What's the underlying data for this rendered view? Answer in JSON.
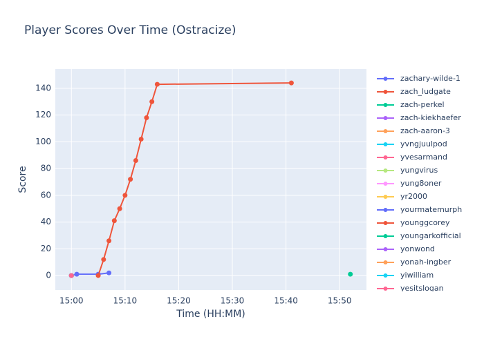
{
  "chart_data": {
    "type": "line",
    "title": "Player Scores Over Time (Ostracize)",
    "x_label": "Time (HH:MM)",
    "y_label": "Score",
    "xlim": [
      "14:57",
      "15:55"
    ],
    "xticks": [
      "15:00",
      "15:10",
      "15:20",
      "15:30",
      "15:40",
      "15:50"
    ],
    "ylim": [
      -10.8,
      154.4
    ],
    "yticks": [
      0,
      20,
      40,
      60,
      80,
      100,
      120,
      140
    ],
    "grid": true,
    "series": [
      {
        "name": "zachary-wilde-1",
        "color": "#636efa",
        "x": [
          "15:00",
          "15:01",
          "15:05",
          "15:07"
        ],
        "values": [
          0,
          1,
          1,
          2
        ]
      },
      {
        "name": "zach_ludgate",
        "color": "#EF553B",
        "x": [
          "15:05",
          "15:06",
          "15:07",
          "15:08",
          "15:09",
          "15:10",
          "15:11",
          "15:12",
          "15:13",
          "15:14",
          "15:15",
          "15:16",
          "15:41"
        ],
        "values": [
          0,
          12,
          26,
          41,
          50,
          60,
          72,
          86,
          102,
          118,
          130,
          143,
          144
        ]
      },
      {
        "name": "zach-perkel",
        "color": "#00cc96",
        "x": [
          "15:52"
        ],
        "values": [
          1
        ]
      },
      {
        "name": "zach-kiekhaefer",
        "color": "#ab63fa",
        "x": [
          "15:00"
        ],
        "values": [
          0
        ]
      },
      {
        "name": "zach-aaron-3",
        "color": "#FFA15A",
        "x": [
          "15:00"
        ],
        "values": [
          0
        ]
      },
      {
        "name": "yvngjuulpod",
        "color": "#19d3f3",
        "x": [
          "15:00"
        ],
        "values": [
          0
        ]
      },
      {
        "name": "yvesarmand",
        "color": "#FF6692",
        "x": [
          "15:00"
        ],
        "values": [
          0
        ]
      },
      {
        "name": "yungvirus",
        "color": "#B6E880",
        "x": [
          "15:00"
        ],
        "values": [
          0
        ]
      },
      {
        "name": "yung8oner",
        "color": "#FF97FF",
        "x": [
          "15:00"
        ],
        "values": [
          0
        ]
      },
      {
        "name": "yr2000",
        "color": "#FECB52",
        "x": [
          "15:00"
        ],
        "values": [
          0
        ]
      },
      {
        "name": "yourmatemurph",
        "color": "#636efa",
        "x": [
          "15:00"
        ],
        "values": [
          0
        ]
      },
      {
        "name": "younggcorey",
        "color": "#EF553B",
        "x": [
          "15:00"
        ],
        "values": [
          0
        ]
      },
      {
        "name": "youngarkofficial",
        "color": "#00cc96",
        "x": [
          "15:00"
        ],
        "values": [
          0
        ]
      },
      {
        "name": "yonwond",
        "color": "#ab63fa",
        "x": [
          "15:00"
        ],
        "values": [
          0
        ]
      },
      {
        "name": "yonah-ingber",
        "color": "#FFA15A",
        "x": [
          "15:00"
        ],
        "values": [
          0
        ]
      },
      {
        "name": "yiwilliam",
        "color": "#19d3f3",
        "x": [
          "15:00"
        ],
        "values": [
          0
        ]
      },
      {
        "name": "yesitslogan",
        "color": "#FF6692",
        "x": [
          "15:00"
        ],
        "values": [
          0
        ]
      }
    ]
  }
}
